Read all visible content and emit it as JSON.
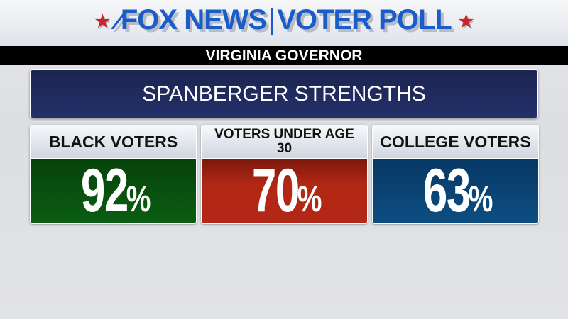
{
  "header": {
    "brand": "FOX NEWS",
    "product": "VOTER POLL",
    "subtitle": "VIRGINIA GOVERNOR",
    "star_color": "#c8262e",
    "brand_color": "#1a5cc8"
  },
  "title": "SPANBERGER STRENGTHS",
  "cards": [
    {
      "label": "BLACK VOTERS",
      "value": "92",
      "unit": "%",
      "color": "#0b5a12"
    },
    {
      "label": "VOTERS UNDER AGE 30",
      "value": "70",
      "unit": "%",
      "color": "#b02614"
    },
    {
      "label": "COLLEGE VOTERS",
      "value": "63",
      "unit": "%",
      "color": "#0c4a7c"
    }
  ]
}
